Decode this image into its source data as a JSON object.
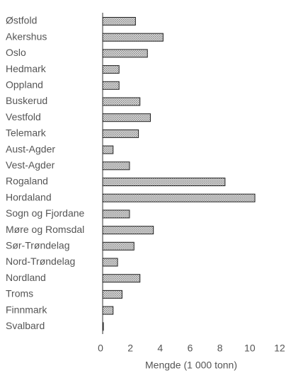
{
  "chart_data": {
    "type": "barh",
    "xlabel": "Mengde (1 000 tonn)",
    "categories": [
      "Østfold",
      "Akershus",
      "Oslo",
      "Hedmark",
      "Oppland",
      "Buskerud",
      "Vestfold",
      "Telemark",
      "Aust-Agder",
      "Vest-Agder",
      "Rogaland",
      "Hordaland",
      "Sogn og Fjordane",
      "Møre og Romsdal",
      "Sør-Trøndelag",
      "Nord-Trøndelag",
      "Nordland",
      "Troms",
      "Finnmark",
      "Svalbard"
    ],
    "values": [
      2.2,
      4.05,
      3.0,
      1.1,
      1.1,
      2.5,
      3.2,
      2.4,
      0.7,
      1.8,
      8.2,
      10.2,
      1.8,
      3.4,
      2.1,
      1.0,
      2.5,
      1.3,
      0.7,
      0.05
    ],
    "color": "#bbbbbb",
    "xlim": [
      0,
      12
    ],
    "xticks": [
      0,
      2,
      4,
      6,
      8,
      10,
      12
    ],
    "grid": false
  }
}
